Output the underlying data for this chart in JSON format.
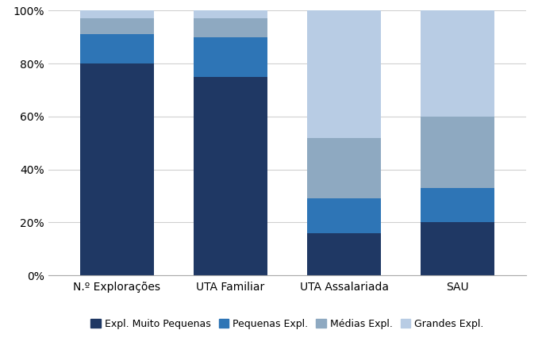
{
  "categories": [
    "N.º Explorações",
    "UTA Familiar",
    "UTA Assalariada",
    "SAU"
  ],
  "series": {
    "Expl. Muito Pequenas": [
      0.8,
      0.75,
      0.16,
      0.2
    ],
    "Pequenas Expl.": [
      0.11,
      0.15,
      0.13,
      0.13
    ],
    "Médias Expl.": [
      0.06,
      0.07,
      0.23,
      0.27
    ],
    "Grandes Expl.": [
      0.03,
      0.03,
      0.48,
      0.4
    ]
  },
  "colors": {
    "Expl. Muito Pequenas": "#1F3864",
    "Pequenas Expl.": "#2E75B6",
    "Médias Expl.": "#8EA9C1",
    "Grandes Expl.": "#B8CCE4"
  },
  "ylim": [
    0,
    1.0
  ],
  "yticks": [
    0.0,
    0.2,
    0.4,
    0.6,
    0.8,
    1.0
  ],
  "ytick_labels": [
    "0%",
    "20%",
    "40%",
    "60%",
    "80%",
    "100%"
  ],
  "bar_width": 0.65,
  "legend_order": [
    "Expl. Muito Pequenas",
    "Pequenas Expl.",
    "Médias Expl.",
    "Grandes Expl."
  ],
  "background_color": "#FFFFFF",
  "grid_color": "#D0D0D0",
  "font_size": 10,
  "legend_font_size": 9,
  "figsize": [
    6.83,
    4.45
  ],
  "dpi": 100
}
